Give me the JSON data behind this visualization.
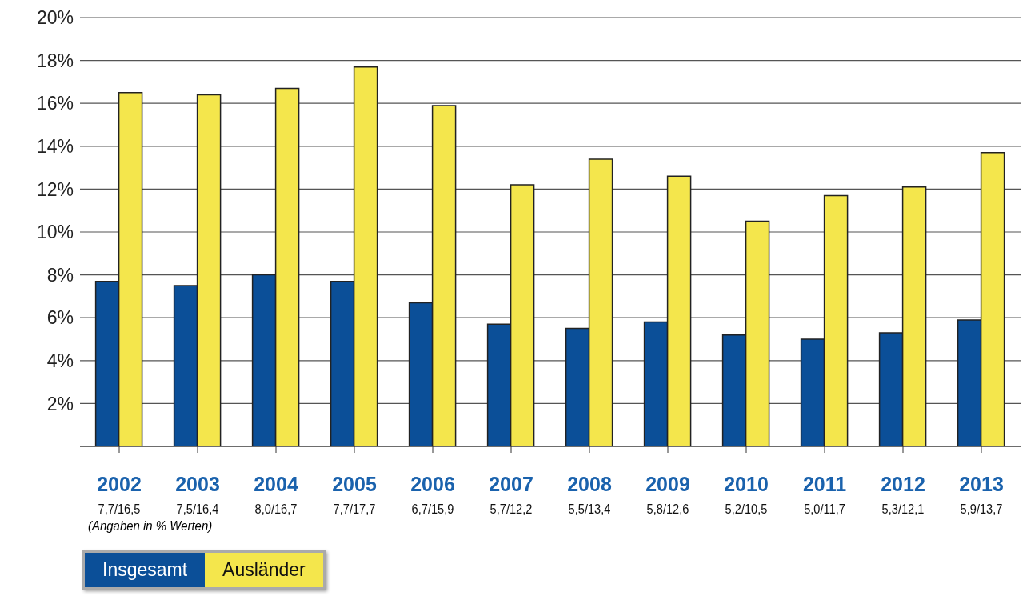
{
  "chart_data": {
    "type": "bar",
    "categories": [
      "2002",
      "2003",
      "2004",
      "2005",
      "2006",
      "2007",
      "2008",
      "2009",
      "2010",
      "2011",
      "2012",
      "2013"
    ],
    "series": [
      {
        "name": "Insgesamt",
        "color": "#0b4f98",
        "values": [
          7.7,
          7.5,
          8.0,
          7.7,
          6.7,
          5.7,
          5.5,
          5.8,
          5.2,
          5.0,
          5.3,
          5.9
        ],
        "value_labels": [
          "7,7/",
          "7,5/",
          "8,0/",
          "7,7/",
          "6,7/",
          "5,7/",
          "5,5/",
          "5,8/",
          "5,2/",
          "5,0/",
          "5,3/",
          "5,9/"
        ]
      },
      {
        "name": "Ausländer",
        "color": "#f4e64c",
        "values": [
          16.5,
          16.4,
          16.7,
          17.7,
          15.9,
          12.2,
          13.4,
          12.6,
          10.5,
          11.7,
          12.1,
          13.7
        ],
        "value_labels": [
          "16,5",
          "16,4",
          "16,7",
          "17,7",
          "15,9",
          "12,2",
          "13,4",
          "12,6",
          "10,5",
          "11,7",
          "12,1",
          "13,7"
        ]
      }
    ],
    "ylim": [
      0,
      20
    ],
    "yticks": [
      {
        "value": 0,
        "label": null
      },
      {
        "value": 2,
        "label": "2%"
      },
      {
        "value": 4,
        "label": "4%"
      },
      {
        "value": 6,
        "label": "6%"
      },
      {
        "value": 8,
        "label": "8%"
      },
      {
        "value": 10,
        "label": "10%"
      },
      {
        "value": 12,
        "label": "12%"
      },
      {
        "value": 14,
        "label": "14%"
      },
      {
        "value": 16,
        "label": "16%"
      },
      {
        "value": 18,
        "label": "18%"
      },
      {
        "value": 20,
        "label": "20%"
      }
    ],
    "grid": "y",
    "legend": "bottom left",
    "annotations": [
      "(Angaben in % Werten)"
    ]
  }
}
